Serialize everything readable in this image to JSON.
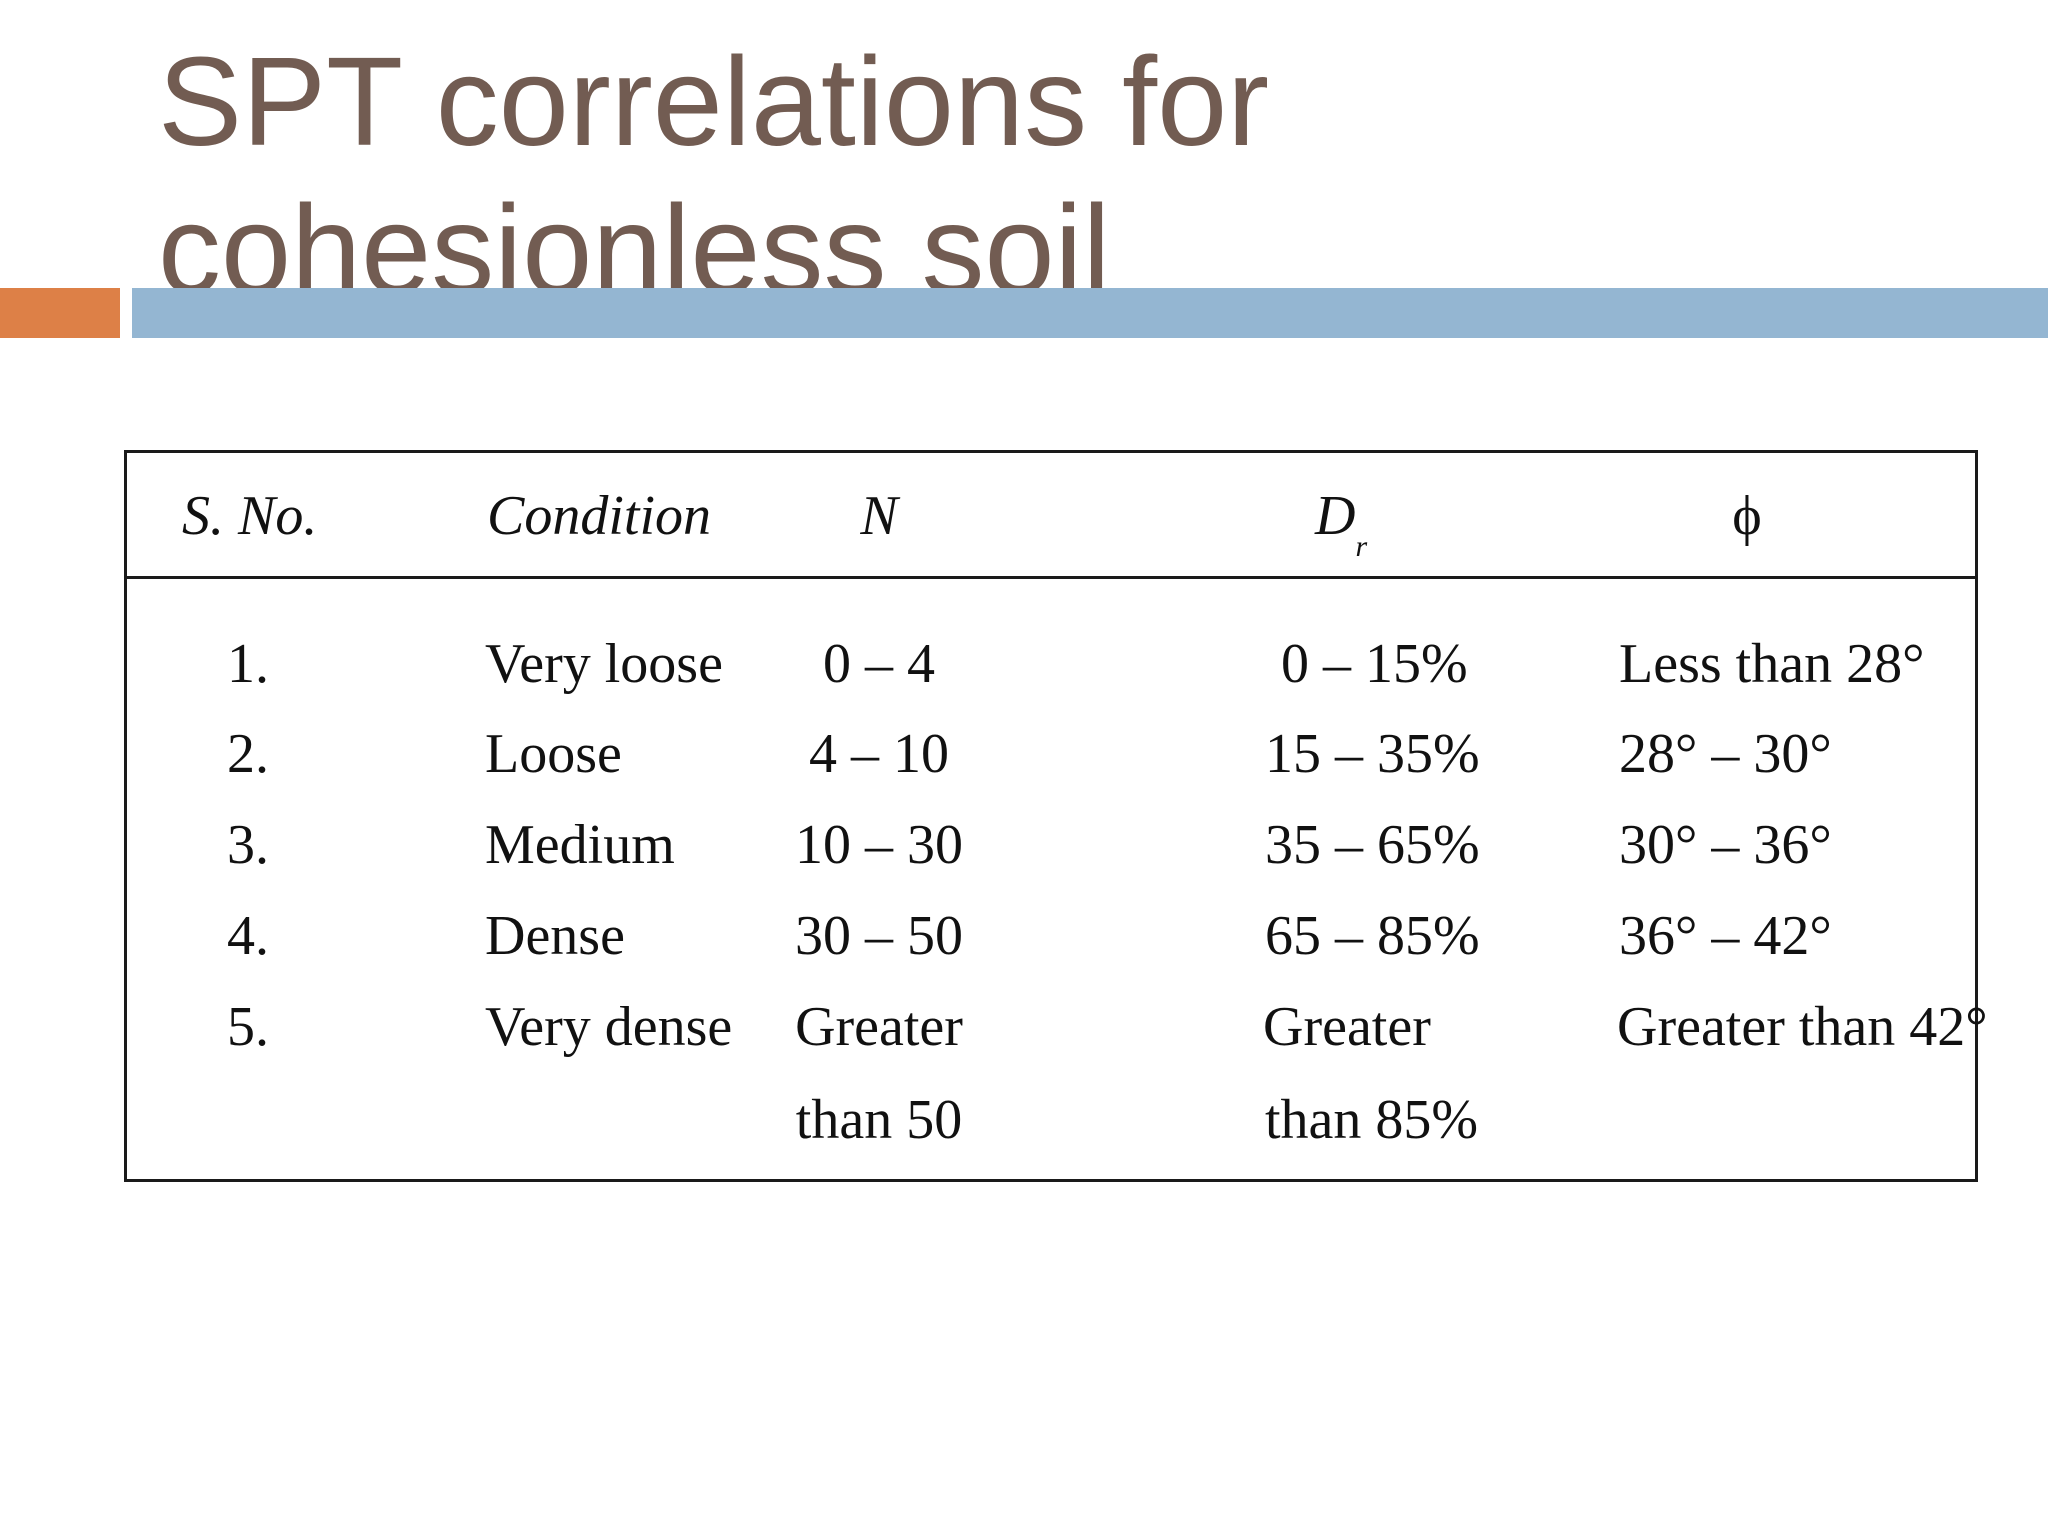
{
  "slide": {
    "title_line1": "SPT correlations for",
    "title_line2": "cohesionless soil"
  },
  "colors": {
    "title": "#725c52",
    "accent_orange": "#dd8047",
    "accent_blue": "#94b6d2"
  },
  "table": {
    "headers": {
      "sno": "S. No.",
      "condition": "Condition",
      "n": "N",
      "dr_main": "D",
      "dr_sub": "r",
      "phi": "ϕ"
    },
    "rows": [
      {
        "sno": "1.",
        "condition": "Very loose",
        "n": "0 – 4",
        "dr": "0 – 15%",
        "phi": "Less than 28°"
      },
      {
        "sno": "2.",
        "condition": "Loose",
        "n": "4 – 10",
        "dr": "15 – 35%",
        "phi": "28° – 30°"
      },
      {
        "sno": "3.",
        "condition": "Medium",
        "n": "10 – 30",
        "dr": "35 – 65%",
        "phi": "30° – 36°"
      },
      {
        "sno": "4.",
        "condition": "Dense",
        "n": "30 – 50",
        "dr": "65 – 85%",
        "phi": "36° – 42°"
      },
      {
        "sno": "5.",
        "condition": "Very dense",
        "n": "Greater",
        "dr": "Greater",
        "phi": "Greater than 42°"
      }
    ],
    "continuation": {
      "n": "than 50",
      "dr": "than 85%"
    }
  }
}
